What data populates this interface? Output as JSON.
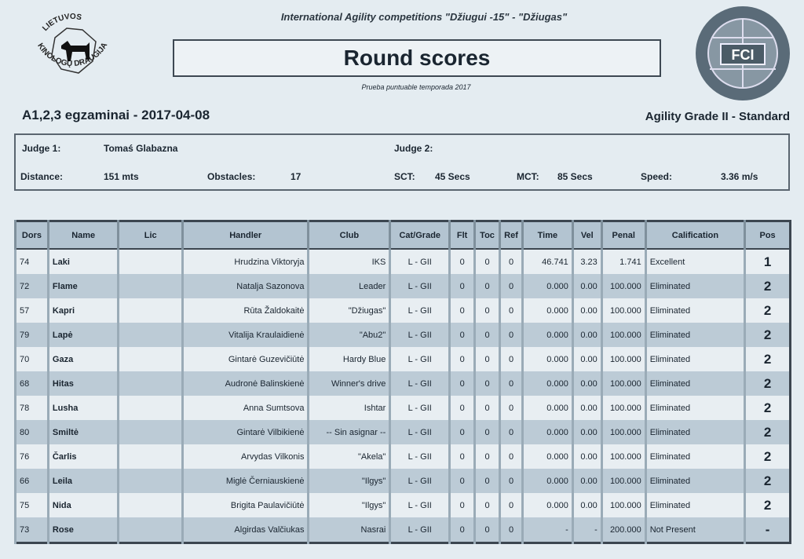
{
  "header": {
    "event_title": "International Agility competitions \"Džiugui -15\" - \"Džiugas\"",
    "title": "Round scores",
    "subtitle": "Prueba puntuable temporada 2017",
    "round_name": "A1,2,3 egzaminai - 2017-04-08",
    "grade": "Agility Grade II - Standard",
    "logo_left_text": "LIETUVOS KINOLOGŲ DRAUGIJA",
    "logo_right_text": "FCI"
  },
  "info": {
    "judge1_label": "Judge 1:",
    "judge1": "Tomaś Glabazna",
    "judge2_label": "Judge 2:",
    "judge2": "",
    "distance_label": "Distance:",
    "distance": "151 mts",
    "obstacles_label": "Obstacles:",
    "obstacles": "17",
    "sct_label": "SCT:",
    "sct": "45 Secs",
    "mct_label": "MCT:",
    "mct": "85 Secs",
    "speed_label": "Speed:",
    "speed": "3.36 m/s"
  },
  "table": {
    "columns": [
      "Dors",
      "Name",
      "Lic",
      "Handler",
      "Club",
      "Cat/Grade",
      "Flt",
      "Toc",
      "Ref",
      "Time",
      "Vel",
      "Penal",
      "Calification",
      "Pos"
    ],
    "rows": [
      [
        "74",
        "Laki",
        "",
        "Hrudzina Viktoryja",
        "IKS",
        "L - GII",
        "0",
        "0",
        "0",
        "46.741",
        "3.23",
        "1.741",
        "Excellent",
        "1"
      ],
      [
        "72",
        "Flame",
        "",
        "Natalja Sazonova",
        "Leader",
        "L - GII",
        "0",
        "0",
        "0",
        "0.000",
        "0.00",
        "100.000",
        "Eliminated",
        "2"
      ],
      [
        "57",
        "Kapri",
        "",
        "Rūta Žaldokaitė",
        "\"Džiugas\"",
        "L - GII",
        "0",
        "0",
        "0",
        "0.000",
        "0.00",
        "100.000",
        "Eliminated",
        "2"
      ],
      [
        "79",
        "Lapė",
        "",
        "Vitalija Kraulaidienė",
        "\"Abu2\"",
        "L - GII",
        "0",
        "0",
        "0",
        "0.000",
        "0.00",
        "100.000",
        "Eliminated",
        "2"
      ],
      [
        "70",
        "Gaza",
        "",
        "Gintarė Guzevičiūtė",
        "Hardy Blue",
        "L - GII",
        "0",
        "0",
        "0",
        "0.000",
        "0.00",
        "100.000",
        "Eliminated",
        "2"
      ],
      [
        "68",
        "Hitas",
        "",
        "Audronė Balinskienė",
        "Winner's drive",
        "L - GII",
        "0",
        "0",
        "0",
        "0.000",
        "0.00",
        "100.000",
        "Eliminated",
        "2"
      ],
      [
        "78",
        "Lusha",
        "",
        "Anna Sumtsova",
        "Ishtar",
        "L - GII",
        "0",
        "0",
        "0",
        "0.000",
        "0.00",
        "100.000",
        "Eliminated",
        "2"
      ],
      [
        "80",
        "Smiltė",
        "",
        "Gintarė Vilbikienė",
        "-- Sin asignar --",
        "L - GII",
        "0",
        "0",
        "0",
        "0.000",
        "0.00",
        "100.000",
        "Eliminated",
        "2"
      ],
      [
        "76",
        "Čarlis",
        "",
        "Arvydas Vilkonis",
        "\"Akela\"",
        "L - GII",
        "0",
        "0",
        "0",
        "0.000",
        "0.00",
        "100.000",
        "Eliminated",
        "2"
      ],
      [
        "66",
        "Leila",
        "",
        "Miglė Černiauskienė",
        "\"Ilgys\"",
        "L - GII",
        "0",
        "0",
        "0",
        "0.000",
        "0.00",
        "100.000",
        "Eliminated",
        "2"
      ],
      [
        "75",
        "Nida",
        "",
        "Brigita Paulavičiūtė",
        "\"Ilgys\"",
        "L - GII",
        "0",
        "0",
        "0",
        "0.000",
        "0.00",
        "100.000",
        "Eliminated",
        "2"
      ],
      [
        "73",
        "Rose",
        "",
        "Algirdas Valčiukas",
        "Nasrai",
        "L - GII",
        "0",
        "0",
        "0",
        "-",
        "-",
        "200.000",
        "Not Present",
        "-"
      ]
    ]
  }
}
